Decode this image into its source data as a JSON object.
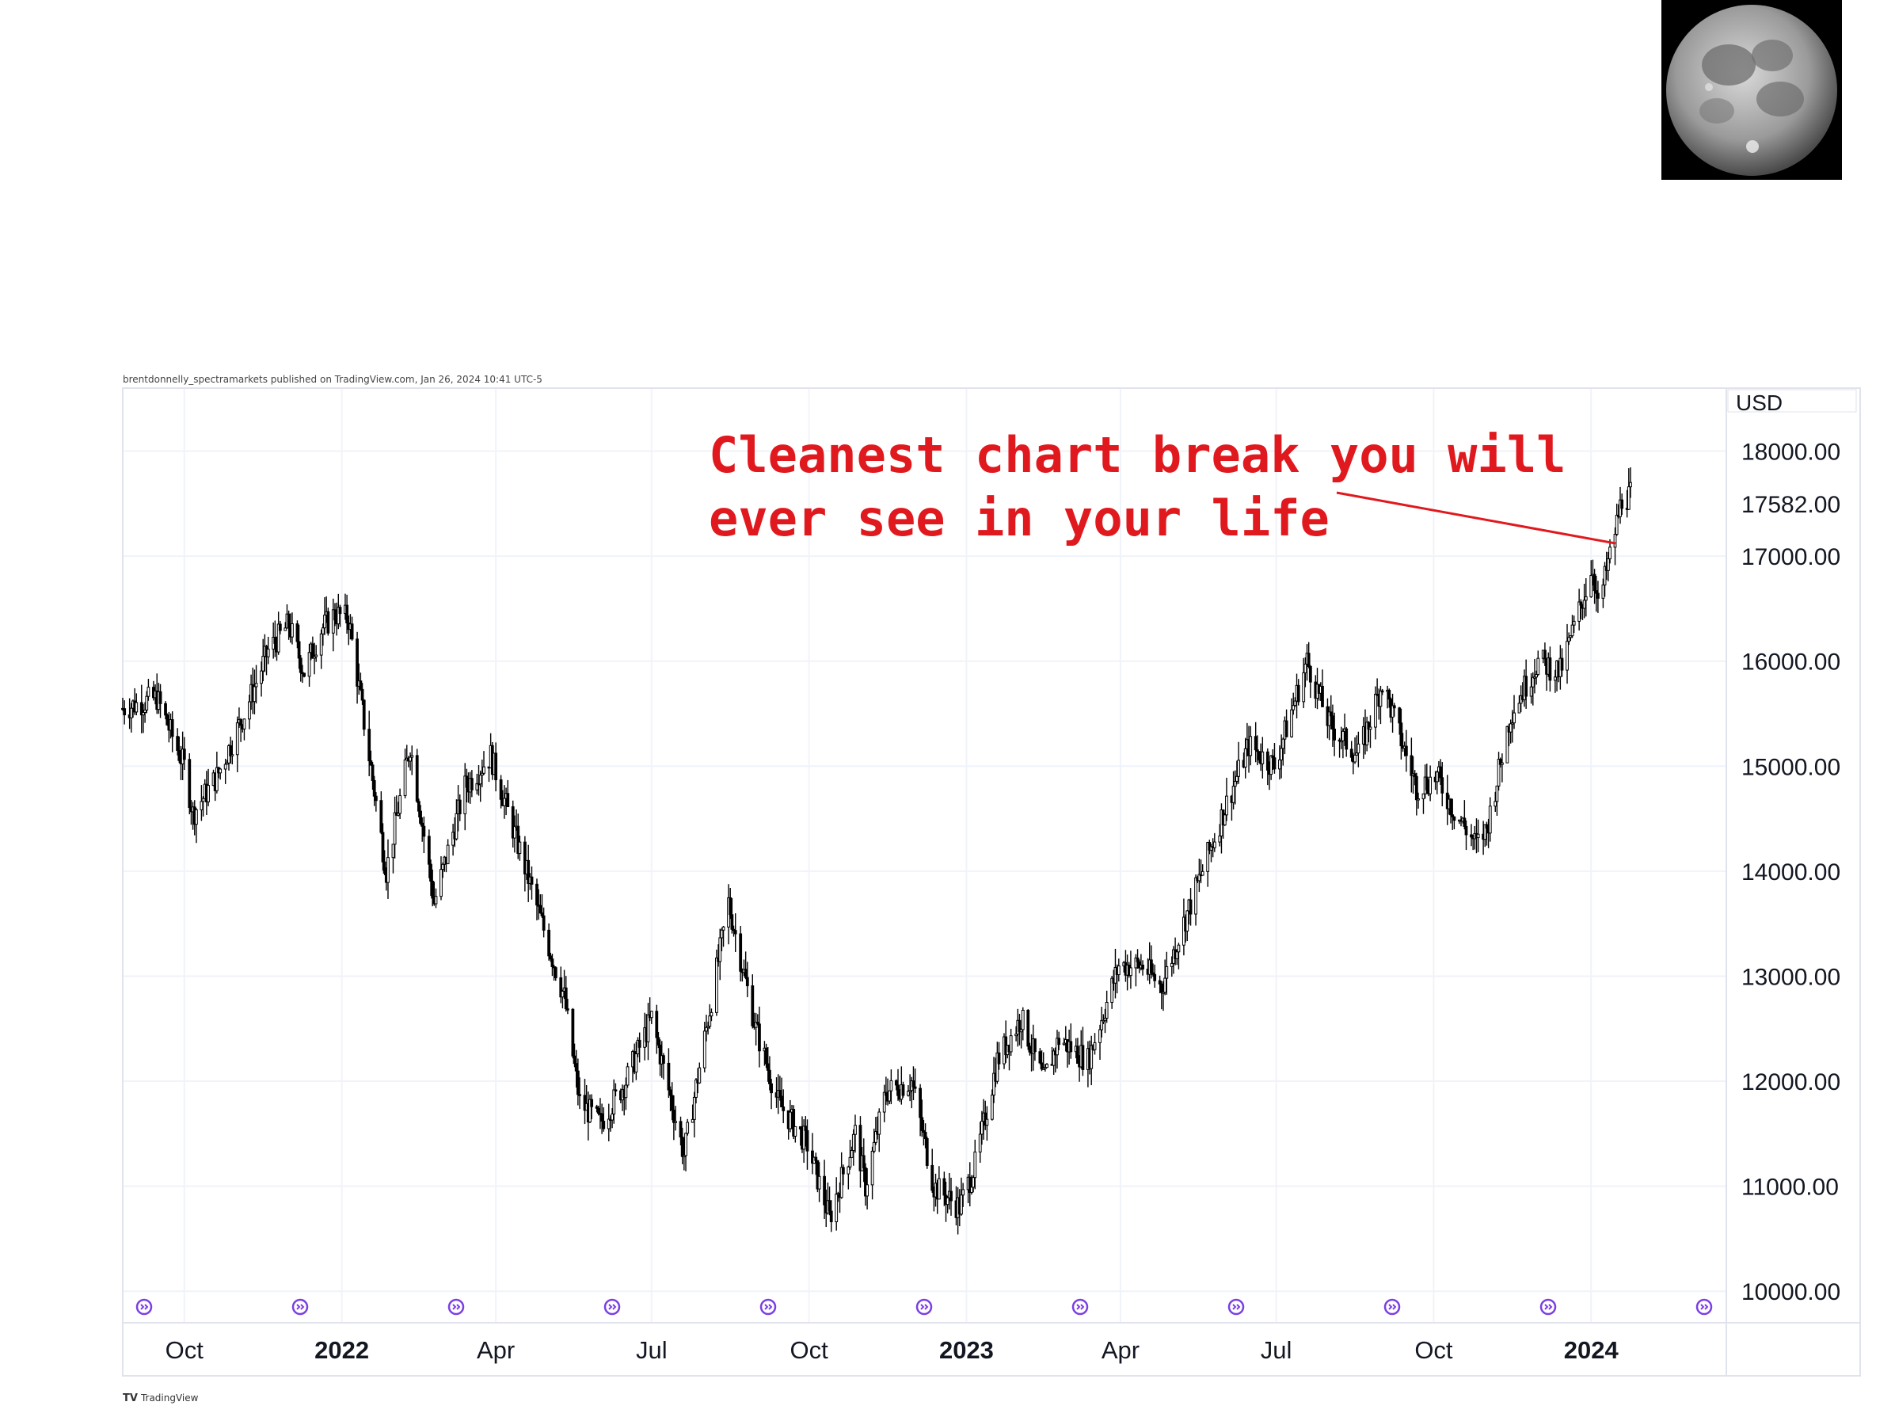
{
  "publisher_line": "brentdonnelly_spectramarkets published on TradingView.com, Jan 26, 2024 10:41 UTC-5",
  "branding": "TradingView",
  "annotation": {
    "line1": "Cleanest chart break you will",
    "line2": "ever see in your life",
    "color": "#e0191e"
  },
  "chart_data": {
    "type": "candlestick",
    "currency": "USD",
    "last_price_label": "17582.00",
    "y_ticks": [
      10000,
      11000,
      12000,
      13000,
      14000,
      15000,
      16000,
      17000,
      18000
    ],
    "y_tick_labels": [
      "10000.00",
      "11000.00",
      "12000.00",
      "13000.00",
      "14000.00",
      "15000.00",
      "16000.00",
      "17000.00",
      "18000.00"
    ],
    "ylim": [
      9700,
      18600
    ],
    "x_ticks": [
      {
        "label": "Oct",
        "date": "2021-10-01",
        "bold": false
      },
      {
        "label": "2022",
        "date": "2022-01-01",
        "bold": true
      },
      {
        "label": "Apr",
        "date": "2022-04-01",
        "bold": false
      },
      {
        "label": "Jul",
        "date": "2022-07-01",
        "bold": false
      },
      {
        "label": "Oct",
        "date": "2022-10-01",
        "bold": false
      },
      {
        "label": "2023",
        "date": "2023-01-01",
        "bold": true
      },
      {
        "label": "Apr",
        "date": "2023-04-01",
        "bold": false
      },
      {
        "label": "Jul",
        "date": "2023-07-01",
        "bold": false
      },
      {
        "label": "Oct",
        "date": "2023-10-01",
        "bold": false
      },
      {
        "label": "2024",
        "date": "2024-01-01",
        "bold": true
      }
    ],
    "xlim": [
      "2021-08-26",
      "2024-03-20"
    ],
    "series": [
      {
        "dates": [
          "2021-08-26",
          "2021-09-15",
          "2021-10-01",
          "2021-10-06",
          "2021-10-20",
          "2021-11-05",
          "2021-11-19",
          "2021-12-01",
          "2021-12-10",
          "2021-12-20",
          "2021-12-28",
          "2022-01-05",
          "2022-01-27",
          "2022-02-10",
          "2022-02-24",
          "2022-03-14",
          "2022-03-29",
          "2022-04-15",
          "2022-05-11",
          "2022-05-20",
          "2022-06-01",
          "2022-06-16",
          "2022-07-01",
          "2022-07-20",
          "2022-08-15",
          "2022-08-31",
          "2022-09-13",
          "2022-09-30",
          "2022-10-13",
          "2022-10-28",
          "2022-11-03",
          "2022-11-15",
          "2022-11-30",
          "2022-12-13",
          "2022-12-28",
          "2023-01-06",
          "2023-01-19",
          "2023-02-02",
          "2023-02-15",
          "2023-02-24",
          "2023-03-13",
          "2023-03-31",
          "2023-04-14",
          "2023-04-25",
          "2023-05-10",
          "2023-06-01",
          "2023-06-15",
          "2023-06-30",
          "2023-07-19",
          "2023-08-01",
          "2023-08-18",
          "2023-09-01",
          "2023-09-21",
          "2023-10-03",
          "2023-10-12",
          "2023-10-26",
          "2023-11-01",
          "2023-11-15",
          "2023-12-01",
          "2023-12-14",
          "2024-01-02",
          "2024-01-05",
          "2024-01-12",
          "2024-01-19",
          "2024-01-24"
        ],
        "values": [
          15550,
          15650,
          15000,
          14550,
          14900,
          15500,
          16100,
          16350,
          15900,
          16300,
          16450,
          16400,
          14000,
          15200,
          13700,
          14800,
          15100,
          14200,
          12800,
          11800,
          11600,
          12000,
          12600,
          11300,
          13700,
          12500,
          11800,
          11400,
          10700,
          11500,
          11000,
          11900,
          12000,
          11000,
          10800,
          11200,
          12200,
          12600,
          12000,
          12400,
          12200,
          13100,
          13100,
          12900,
          13600,
          14600,
          15200,
          15000,
          16000,
          15400,
          15100,
          15800,
          14800,
          14900,
          14600,
          14250,
          14400,
          15500,
          16000,
          15900,
          16900,
          16500,
          17000,
          17550,
          17582
        ]
      }
    ]
  }
}
